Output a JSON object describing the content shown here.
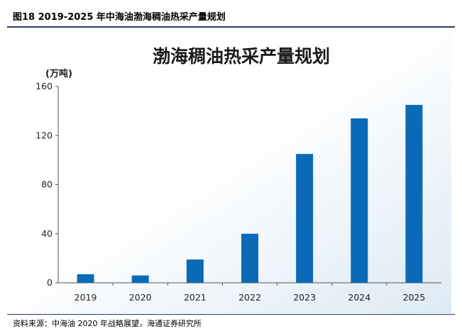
{
  "figure": {
    "title": "图18 2019-2025 年中海油渤海稠油热采产量规划",
    "source": "资料来源：中海油 2020 年战略展望，海通证券研究所"
  },
  "chart_data": {
    "type": "bar",
    "title": "渤海稠油热采产量规划",
    "ylabel": "(万吨)",
    "xlabel": "",
    "categories": [
      "2019",
      "2020",
      "2021",
      "2022",
      "2023",
      "2024",
      "2025"
    ],
    "values": [
      7,
      6,
      19,
      40,
      105,
      134,
      145
    ],
    "ylim": [
      0,
      160
    ],
    "yticks": [
      0,
      40,
      80,
      120,
      160
    ],
    "grid": false,
    "bar_color": "#0a6ab8",
    "background_gradient": [
      "#ffffff",
      "#ddeaf5"
    ]
  }
}
